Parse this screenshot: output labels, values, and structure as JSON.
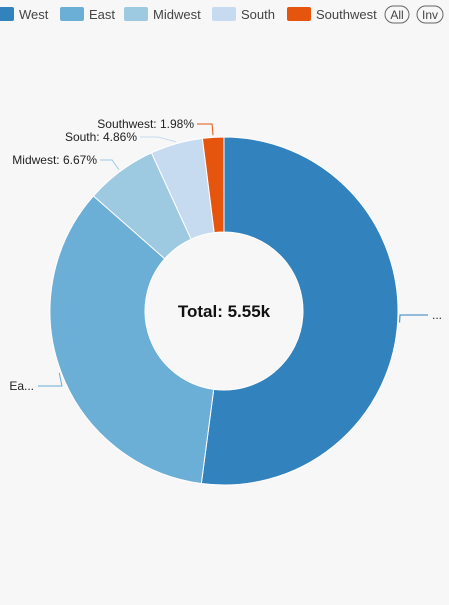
{
  "legend_buttons": {
    "all": "All",
    "inv": "Inv"
  },
  "chart_data": {
    "type": "pie",
    "variant": "donut",
    "center_label": "Total: 5.55k",
    "legend_position": "top",
    "series": [
      {
        "name": "West",
        "value": 2893,
        "percent": 52.13,
        "color": "#3182bd",
        "label": "..."
      },
      {
        "name": "East",
        "value": 1912,
        "percent": 34.46,
        "color": "#6baed6",
        "label": "Ea..."
      },
      {
        "name": "Midwest",
        "value": 370,
        "percent": 6.67,
        "color": "#9ecae1",
        "label": "Midwest: 6.67%"
      },
      {
        "name": "South",
        "value": 270,
        "percent": 4.86,
        "color": "#c6dbef",
        "label": "South: 4.86%"
      },
      {
        "name": "Southwest",
        "value": 110,
        "percent": 1.98,
        "color": "#e6550d",
        "label": "Southwest: 1.98%"
      }
    ]
  }
}
